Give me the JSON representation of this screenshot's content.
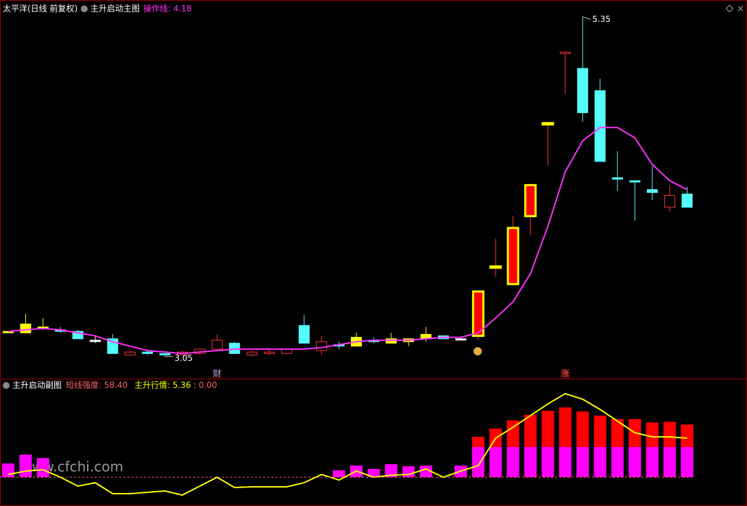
{
  "chart_data": [
    {
      "type": "candlestick",
      "title": "太平洋(日线 前复权)",
      "subtitle": "主升启动主图",
      "ylim": [
        2.9,
        5.44
      ],
      "open": [
        3.21,
        3.21,
        3.24,
        3.23,
        3.22,
        3.16,
        3.17,
        3.06,
        3.08,
        3.07,
        3.06,
        3.07,
        3.1,
        3.14,
        3.06,
        3.07,
        3.07,
        3.26,
        3.09,
        3.13,
        3.12,
        3.16,
        3.14,
        3.15,
        3.17,
        3.19,
        3.17,
        3.19,
        3.66,
        3.54,
        4.0,
        4.63,
        5.11,
        5.0,
        4.85,
        4.26,
        4.24,
        4.18,
        4.06,
        4.15
      ],
      "high": [
        3.22,
        3.34,
        3.31,
        3.25,
        3.23,
        3.19,
        3.2,
        3.09,
        3.09,
        3.07,
        3.09,
        3.1,
        3.2,
        3.15,
        3.09,
        3.1,
        3.1,
        3.33,
        3.19,
        3.15,
        3.21,
        3.18,
        3.21,
        3.17,
        3.25,
        3.19,
        3.18,
        3.49,
        3.85,
        4.0,
        4.22,
        4.63,
        5.11,
        5.35,
        4.93,
        4.44,
        4.24,
        4.34,
        4.21,
        4.2
      ],
      "low": [
        3.21,
        3.21,
        3.23,
        3.21,
        3.17,
        3.14,
        3.07,
        3.06,
        3.06,
        3.05,
        3.06,
        3.06,
        3.1,
        3.07,
        3.05,
        3.06,
        3.07,
        3.14,
        3.06,
        3.1,
        3.12,
        3.14,
        3.14,
        3.12,
        3.15,
        3.17,
        3.16,
        3.16,
        3.59,
        3.54,
        3.87,
        4.34,
        4.83,
        4.64,
        4.37,
        4.17,
        3.97,
        4.11,
        4.03,
        4.06
      ],
      "close": [
        3.22,
        3.27,
        3.25,
        3.22,
        3.17,
        3.16,
        3.07,
        3.08,
        3.07,
        3.06,
        3.08,
        3.1,
        3.16,
        3.07,
        3.08,
        3.08,
        3.1,
        3.14,
        3.15,
        3.13,
        3.18,
        3.15,
        3.17,
        3.17,
        3.2,
        3.17,
        3.17,
        3.49,
        3.66,
        3.92,
        4.21,
        4.63,
        5.11,
        4.7,
        4.37,
        4.25,
        4.24,
        4.16,
        4.14,
        4.06
      ],
      "styles": [
        "yellow",
        "yellow",
        "yellow",
        "cyan",
        "cyan",
        "white",
        "cyan",
        "red",
        "cyan",
        "cyan",
        "red",
        "red",
        "red",
        "cyan",
        "red",
        "red",
        "red",
        "cyan",
        "red",
        "cyan",
        "yellow",
        "cyan",
        "yellow",
        "yellow",
        "yellow",
        "cyan",
        "white",
        "redyellow",
        "redyellow",
        "redyellow",
        "redyellow",
        "redyellow",
        "red",
        "cyan",
        "cyan",
        "cyan",
        "cyan",
        "cyan",
        "red",
        "cyan"
      ],
      "series": [
        {
          "name": "操作线: 4.18",
          "color": "#ff32ff",
          "values": [
            3.22,
            3.23,
            3.24,
            3.23,
            3.21,
            3.19,
            3.15,
            3.12,
            3.09,
            3.08,
            3.07,
            3.08,
            3.09,
            3.1,
            3.1,
            3.1,
            3.1,
            3.1,
            3.11,
            3.13,
            3.15,
            3.16,
            3.16,
            3.16,
            3.17,
            3.18,
            3.18,
            3.21,
            3.31,
            3.42,
            3.61,
            3.93,
            4.3,
            4.51,
            4.6,
            4.6,
            4.53,
            4.35,
            4.24,
            4.18
          ]
        }
      ],
      "annotations": [
        {
          "text": "5.35",
          "value": 5.35,
          "index": 33
        },
        {
          "text": "3.05",
          "value": 3.05,
          "index": 9
        }
      ],
      "markers": [
        {
          "text": "财",
          "index": 12
        },
        {
          "text": "涨",
          "index": 32
        }
      ]
    },
    {
      "type": "bar_line",
      "title": "主升启动副图",
      "ylim": [
        -32,
        107
      ],
      "y2lim": [
        -3.95,
        13.26
      ],
      "color_split": 33.4,
      "series": [
        {
          "name": "短线强度: 58.40",
          "color": "#ff00ff",
          "upper_color": "#ff0000",
          "values": [
            15.2,
            25.0,
            21.2,
            null,
            null,
            null,
            null,
            null,
            null,
            null,
            null,
            null,
            null,
            null,
            null,
            null,
            null,
            null,
            null,
            7.6,
            12.9,
            9.1,
            14.4,
            12.1,
            12.9,
            null,
            12.9,
            44.8,
            53.9,
            63.0,
            69.1,
            73.6,
            77.4,
            72.9,
            68.3,
            64.5,
            64.5,
            60.7,
            61.5,
            58.4
          ]
        },
        {
          "name": "主升行情: 5.36",
          "color": "#ffff00",
          "axis": "y2",
          "values": [
            0.38,
            0.85,
            1.03,
            0,
            -1.22,
            -0.75,
            -2.26,
            -2.26,
            -2.07,
            -1.88,
            -2.45,
            -1.22,
            0,
            -1.41,
            -1.32,
            -1.32,
            -1.32,
            -0.75,
            0.38,
            -0.38,
            0.85,
            0,
            0.28,
            0.38,
            1.13,
            0,
            0.85,
            1.6,
            5.36,
            6.87,
            8.47,
            10.07,
            11.48,
            10.72,
            9.31,
            7.71,
            6.11,
            5.55,
            5.55,
            5.36
          ]
        },
        {
          "name": ": 0.00",
          "color": "#ff6464",
          "axis": "y2",
          "value": 0
        }
      ],
      "watermark": "www.cfchi.com"
    }
  ]
}
